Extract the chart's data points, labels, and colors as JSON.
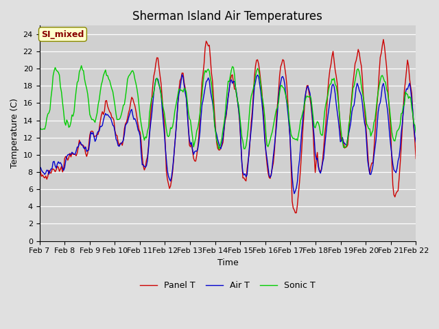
{
  "title": "Sherman Island Air Temperatures",
  "xlabel": "Time",
  "ylabel": "Temperature (C)",
  "ylim": [
    0,
    25
  ],
  "background_color": "#e0e0e0",
  "plot_bg_color": "#d0d0d0",
  "legend_label_box": "SI_mixed",
  "legend_box_bg": "#ffffcc",
  "legend_box_edge": "#888800",
  "legend_box_text_color": "#880000",
  "xtick_labels": [
    "Feb 7",
    "Feb 8",
    "Feb 9",
    "Feb 10",
    "Feb 11",
    "Feb 12",
    "Feb 13",
    "Feb 14",
    "Feb 15",
    "Feb 16",
    "Feb 17",
    "Feb 18",
    "Feb 19",
    "Feb 20",
    "Feb 21",
    "Feb 22"
  ],
  "series_colors": [
    "#cc0000",
    "#0000cc",
    "#00cc00"
  ],
  "series_labels": [
    "Panel T",
    "Air T",
    "Sonic T"
  ],
  "line_width": 1.0,
  "title_fontsize": 12,
  "axis_label_fontsize": 9,
  "tick_fontsize": 8
}
